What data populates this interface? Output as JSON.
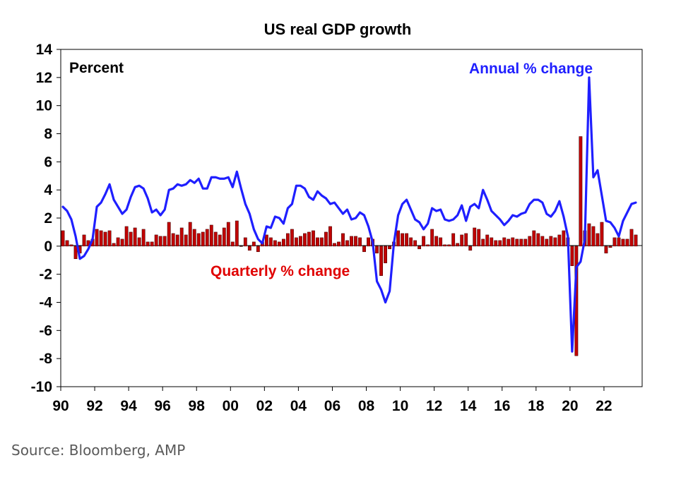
{
  "chart_data": {
    "type": "bar+line",
    "title": "US real GDP growth",
    "ylabel": "Percent",
    "ylim": [
      -10,
      14
    ],
    "yticks": [
      14,
      12,
      10,
      8,
      6,
      4,
      2,
      0,
      -2,
      -4,
      -6,
      -8,
      -10
    ],
    "xlim": [
      1990,
      2024.25
    ],
    "xticks": [
      "90",
      "92",
      "94",
      "96",
      "98",
      "00",
      "02",
      "04",
      "06",
      "08",
      "10",
      "12",
      "14",
      "16",
      "18",
      "20",
      "22"
    ],
    "grid": false,
    "series": [
      {
        "name": "Quarterly % change",
        "type": "bar",
        "color": "#c00000",
        "start_year": 1990,
        "quarters_per_year": 4,
        "values": [
          1.1,
          0.4,
          0.1,
          -0.9,
          -0.5,
          0.8,
          0.4,
          0.5,
          1.2,
          1.1,
          1.0,
          1.1,
          0.2,
          0.6,
          0.5,
          1.4,
          1.0,
          1.3,
          0.6,
          1.2,
          0.3,
          0.3,
          0.8,
          0.7,
          0.7,
          1.7,
          0.9,
          0.8,
          1.3,
          0.8,
          1.7,
          1.2,
          0.9,
          1.0,
          1.2,
          1.5,
          1.0,
          0.8,
          1.3,
          1.7,
          0.3,
          1.8,
          0.0,
          0.6,
          -0.3,
          0.3,
          -0.4,
          0.3,
          0.8,
          0.6,
          0.4,
          0.3,
          0.5,
          0.9,
          1.2,
          0.6,
          0.7,
          0.9,
          1.0,
          1.1,
          0.6,
          0.6,
          1.0,
          1.4,
          0.2,
          0.3,
          0.9,
          0.4,
          0.7,
          0.7,
          0.6,
          -0.4,
          0.6,
          0.5,
          -0.5,
          -2.1,
          -1.2,
          -0.2,
          0.3,
          1.1,
          0.9,
          0.9,
          0.6,
          0.4,
          -0.2,
          0.7,
          0.1,
          1.2,
          0.7,
          0.6,
          0.1,
          0.1,
          0.9,
          0.2,
          0.8,
          0.9,
          -0.3,
          1.3,
          1.2,
          0.5,
          0.8,
          0.6,
          0.4,
          0.4,
          0.6,
          0.5,
          0.6,
          0.5,
          0.5,
          0.5,
          0.7,
          1.1,
          0.9,
          0.7,
          0.5,
          0.7,
          0.6,
          0.8,
          1.1,
          0.6,
          -1.4,
          -7.8,
          7.8,
          1.1,
          1.6,
          1.4,
          0.9,
          1.7,
          -0.5,
          -0.1,
          0.6,
          0.6,
          0.5,
          0.5,
          1.2,
          0.8
        ]
      },
      {
        "name": "Annual % change",
        "type": "line",
        "color": "#1f1fff",
        "start_year": 1990,
        "quarters_per_year": 4,
        "values": [
          2.8,
          2.5,
          1.9,
          0.7,
          -0.9,
          -0.7,
          -0.2,
          0.5,
          2.8,
          3.1,
          3.7,
          4.4,
          3.3,
          2.8,
          2.3,
          2.6,
          3.5,
          4.2,
          4.3,
          4.1,
          3.4,
          2.4,
          2.6,
          2.2,
          2.6,
          4.0,
          4.1,
          4.4,
          4.3,
          4.4,
          4.7,
          4.5,
          4.8,
          4.1,
          4.1,
          4.9,
          4.9,
          4.8,
          4.8,
          4.9,
          4.2,
          5.3,
          4.1,
          3.0,
          2.3,
          1.2,
          0.5,
          0.2,
          1.4,
          1.3,
          2.1,
          2.0,
          1.6,
          2.7,
          3.0,
          4.3,
          4.3,
          4.1,
          3.5,
          3.3,
          3.9,
          3.6,
          3.4,
          3.0,
          3.1,
          2.7,
          2.3,
          2.6,
          1.9,
          2.0,
          2.4,
          2.2,
          1.4,
          0.3,
          -2.5,
          -3.1,
          -4.0,
          -3.2,
          0.2,
          2.2,
          3.0,
          3.3,
          2.6,
          1.9,
          1.7,
          1.2,
          1.6,
          2.7,
          2.5,
          2.6,
          1.9,
          1.8,
          1.9,
          2.2,
          2.9,
          1.8,
          2.8,
          3.0,
          2.7,
          4.0,
          3.3,
          2.5,
          2.2,
          1.9,
          1.5,
          1.8,
          2.2,
          2.1,
          2.3,
          2.4,
          3.0,
          3.3,
          3.3,
          3.1,
          2.3,
          2.1,
          2.5,
          3.2,
          2.1,
          0.7,
          -7.5,
          -1.5,
          -1.1,
          0.5,
          12.0,
          4.9,
          5.4,
          3.6,
          1.8,
          1.7,
          1.3,
          0.7,
          1.8,
          2.4,
          3.0,
          3.1
        ]
      }
    ],
    "annotations": [
      {
        "text": "Annual % change",
        "color": "#1f1fff"
      },
      {
        "text": "Quarterly % change",
        "color": "#e00000"
      }
    ],
    "source": "Source: Bloomberg, AMP"
  }
}
